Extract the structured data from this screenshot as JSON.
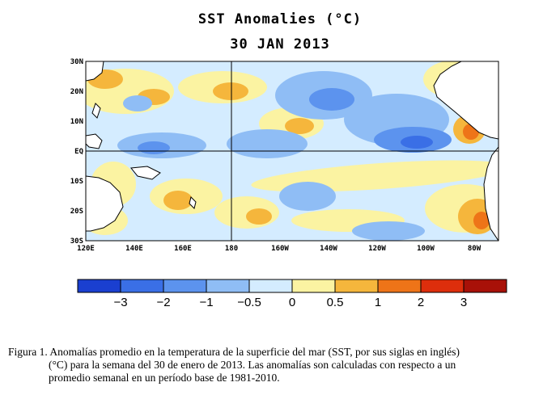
{
  "title": "SST Anomalies (°C)",
  "date": "30 JAN 2013",
  "map": {
    "lat_labels": [
      "30N",
      "20N",
      "10N",
      "EQ",
      "10S",
      "20S",
      "30S"
    ],
    "lon_labels": [
      "120E",
      "140E",
      "160E",
      "180",
      "160W",
      "140W",
      "120W",
      "100W",
      "80W"
    ],
    "lat_range": [
      -30,
      30
    ],
    "lon_range": [
      120,
      290
    ],
    "reference_lines": [
      "EQ",
      "180"
    ]
  },
  "colorbar": {
    "labels": [
      "−3",
      "−2",
      "−1",
      "−0.5",
      "0",
      "0.5",
      "1",
      "2",
      "3"
    ],
    "colors": [
      "#1a3fd0",
      "#3a6fe6",
      "#5c93ee",
      "#8fbdf5",
      "#d4ecff",
      "#fbf3a2",
      "#f5b63c",
      "#ee7418",
      "#dd2e0c",
      "#a81108"
    ]
  },
  "caption": {
    "line1": "Figura 1. Anomalías promedio en la temperatura de la superficie del mar (SST, por sus siglas en inglés)",
    "line2": "(°C) para la semana del 30 de enero de 2013.   Las anomalías son calculadas con respecto a un",
    "line3": "promedio semanal en un período base de 1981-2010."
  }
}
